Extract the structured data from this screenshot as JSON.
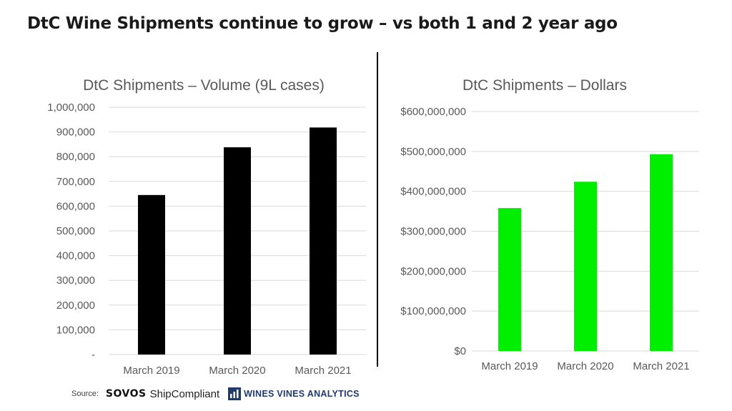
{
  "title": "DtC Wine Shipments continue to grow – vs both 1 and 2 year ago",
  "source": {
    "label": "Source:",
    "brand1": "SOVOS",
    "brand1_product": "ShipCompliant",
    "brand2": "WINES VINES ANALYTICS"
  },
  "chart_data": [
    {
      "type": "bar",
      "title": "DtC Shipments – Volume (9L cases)",
      "categories": [
        "March 2019",
        "March 2020",
        "March 2021"
      ],
      "values": [
        645000,
        838000,
        918000
      ],
      "ylim": [
        0,
        1000000
      ],
      "yticks": [
        0,
        100000,
        200000,
        300000,
        400000,
        500000,
        600000,
        700000,
        800000,
        900000,
        1000000
      ],
      "ytick_labels": [
        "-",
        "100,000",
        "200,000",
        "300,000",
        "400,000",
        "500,000",
        "600,000",
        "700,000",
        "800,000",
        "900,000",
        "1,000,000"
      ],
      "color": "#000000",
      "grid": true,
      "xlabel": "",
      "ylabel": ""
    },
    {
      "type": "bar",
      "title": "DtC Shipments – Dollars",
      "categories": [
        "March 2019",
        "March 2020",
        "March 2021"
      ],
      "values": [
        358000000,
        424000000,
        493000000
      ],
      "ylim": [
        0,
        600000000
      ],
      "yticks": [
        0,
        100000000,
        200000000,
        300000000,
        400000000,
        500000000,
        600000000
      ],
      "ytick_labels": [
        "$0",
        "$100,000,000",
        "$200,000,000",
        "$300,000,000",
        "$400,000,000",
        "$500,000,000",
        "$600,000,000"
      ],
      "color": "#00ee00",
      "grid": true,
      "xlabel": "",
      "ylabel": ""
    }
  ]
}
